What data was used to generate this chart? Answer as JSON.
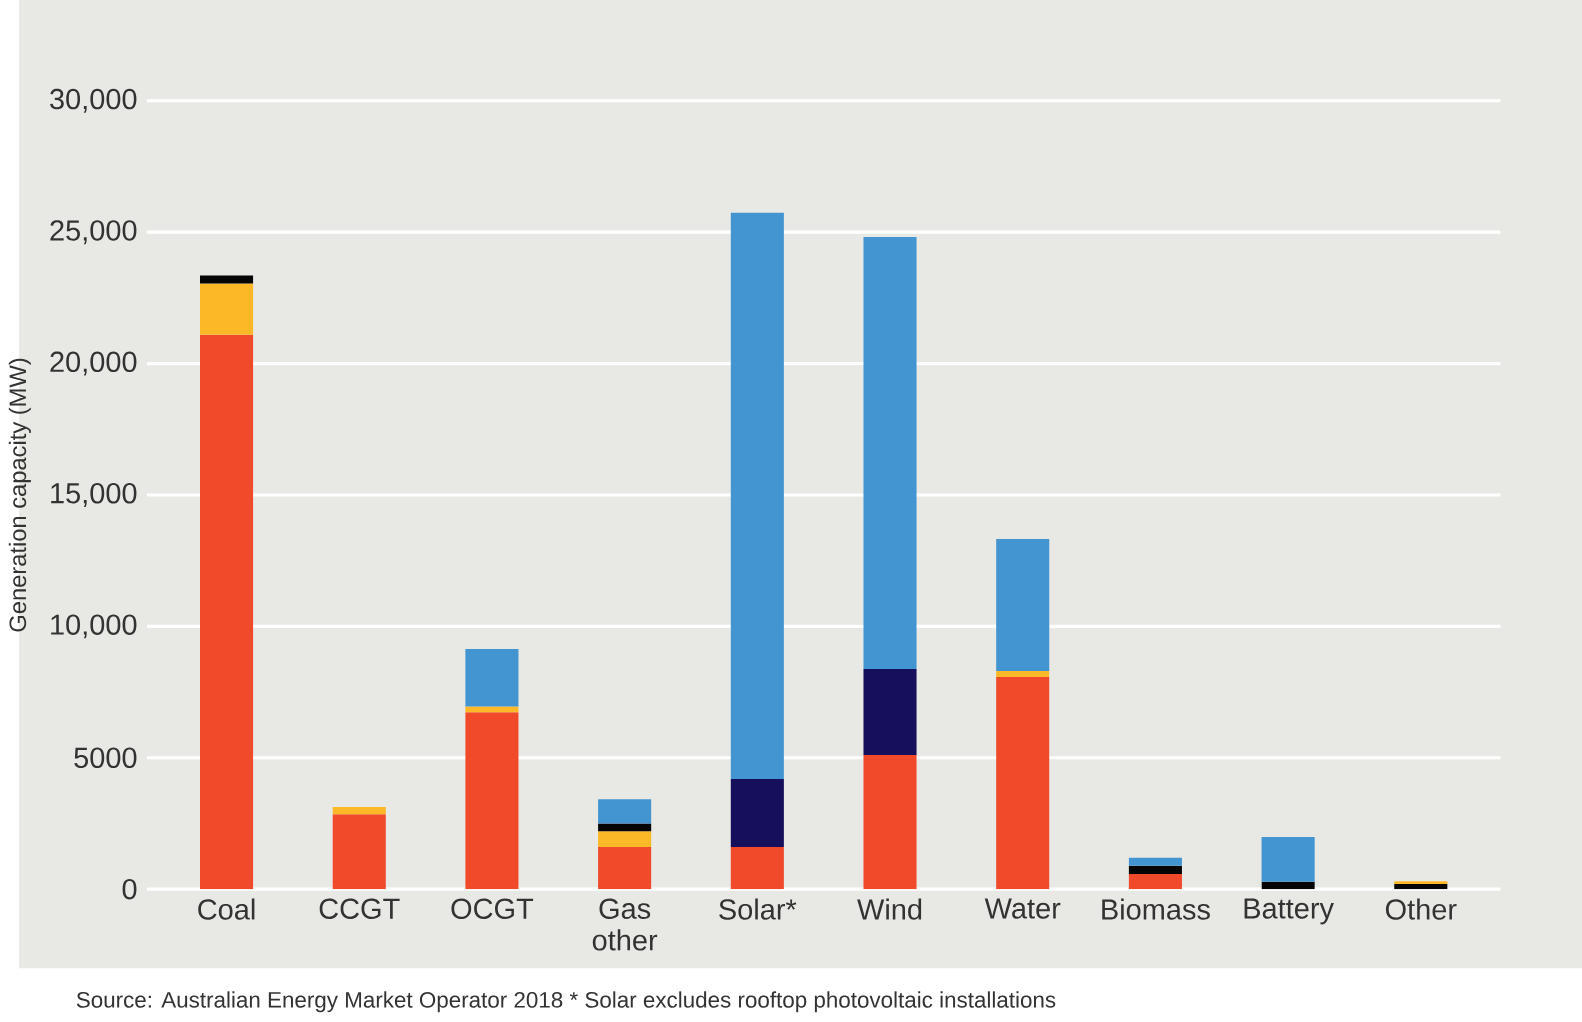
{
  "chart_data": {
    "type": "bar",
    "stacked": true,
    "ylabel": "Generation capacity (MW)",
    "categories": [
      "Coal",
      "CCGT",
      "OCGT",
      "Gas other",
      "Solar*",
      "Wind",
      "Water",
      "Biomass",
      "Battery",
      "Other"
    ],
    "series": [
      {
        "color": "#f04a2b",
        "values": [
          21100,
          2850,
          6730,
          1600,
          1600,
          5100,
          8070,
          580,
          null,
          null
        ]
      },
      {
        "color": "#fdb827",
        "values": [
          1950,
          280,
          220,
          600,
          null,
          null,
          230,
          null,
          null,
          null
        ]
      },
      {
        "color": "#050505",
        "values": [
          300,
          null,
          null,
          300,
          null,
          null,
          null,
          310,
          280,
          200
        ]
      },
      {
        "color": "#fdb827",
        "values": [
          null,
          null,
          null,
          null,
          null,
          null,
          null,
          null,
          null,
          100
        ]
      },
      {
        "color": "#160f5c",
        "values": [
          null,
          null,
          null,
          null,
          2590,
          3280,
          null,
          null,
          null,
          null
        ]
      },
      {
        "color": "#4395d1",
        "values": [
          null,
          null,
          2190,
          920,
          21550,
          16440,
          5020,
          300,
          1700,
          null
        ]
      }
    ],
    "ylim": [
      0,
      30000
    ],
    "yticks": [
      0,
      5000,
      {
        "value": 10000,
        "label": "10,000"
      },
      {
        "value": 15000,
        "label": "15,000"
      },
      {
        "value": 20000,
        "label": "20,000"
      },
      {
        "value": 25000,
        "label": "25,000"
      },
      {
        "value": 30000,
        "label": "30,000"
      }
    ],
    "grid": "y",
    "annotations": [
      "Source: Australian Energy Market Operator 2018  * Solar excludes rooftop photovoltaic installations"
    ]
  }
}
